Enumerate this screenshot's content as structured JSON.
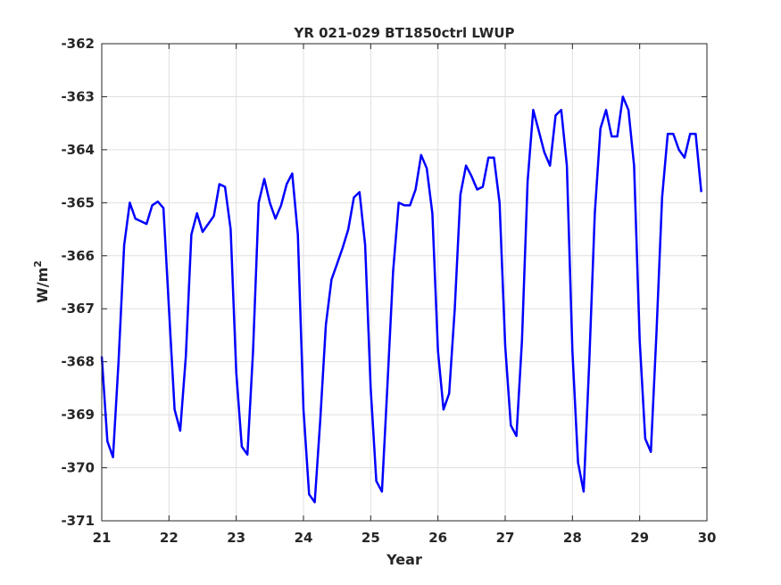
{
  "chart_data": {
    "type": "line",
    "title": "YR 021-029 BT1850ctrl LWUP",
    "xlabel": "Year",
    "ylabel_base": "W/m",
    "ylabel_superscript": "2",
    "xlim": [
      21,
      30
    ],
    "ylim": [
      -371,
      -362
    ],
    "xticks": [
      21,
      22,
      23,
      24,
      25,
      26,
      27,
      28,
      29,
      30
    ],
    "yticks": [
      -362,
      -363,
      -364,
      -365,
      -366,
      -367,
      -368,
      -369,
      -370,
      -371
    ],
    "grid": true,
    "series": [
      {
        "color": "#0000ff",
        "x": [
          21.0,
          21.083,
          21.167,
          21.25,
          21.333,
          21.417,
          21.5,
          21.583,
          21.667,
          21.75,
          21.833,
          21.917,
          22.0,
          22.083,
          22.167,
          22.25,
          22.333,
          22.417,
          22.5,
          22.583,
          22.667,
          22.75,
          22.833,
          22.917,
          23.0,
          23.083,
          23.167,
          23.25,
          23.333,
          23.417,
          23.5,
          23.583,
          23.667,
          23.75,
          23.833,
          23.917,
          24.0,
          24.083,
          24.167,
          24.25,
          24.333,
          24.417,
          24.5,
          24.583,
          24.667,
          24.75,
          24.833,
          24.917,
          25.0,
          25.083,
          25.167,
          25.25,
          25.333,
          25.417,
          25.5,
          25.583,
          25.667,
          25.75,
          25.833,
          25.917,
          26.0,
          26.083,
          26.167,
          26.25,
          26.333,
          26.417,
          26.5,
          26.583,
          26.667,
          26.75,
          26.833,
          26.917,
          27.0,
          27.083,
          27.167,
          27.25,
          27.333,
          27.417,
          27.5,
          27.583,
          27.667,
          27.75,
          27.833,
          27.917,
          28.0,
          28.083,
          28.167,
          28.25,
          28.333,
          28.417,
          28.5,
          28.583,
          28.667,
          28.75,
          28.833,
          28.917,
          29.0,
          29.083,
          29.167,
          29.25,
          29.333,
          29.417,
          29.5,
          29.583,
          29.667,
          29.75,
          29.833,
          29.917
        ],
        "y": [
          -367.9,
          -369.5,
          -369.8,
          -368.0,
          -365.8,
          -365.0,
          -365.3,
          -365.35,
          -365.4,
          -365.05,
          -364.98,
          -365.1,
          -367.0,
          -368.9,
          -369.3,
          -367.9,
          -365.6,
          -365.2,
          -365.55,
          -365.4,
          -365.25,
          -364.65,
          -364.7,
          -365.5,
          -368.2,
          -369.6,
          -369.75,
          -367.8,
          -365.0,
          -364.55,
          -365.0,
          -365.3,
          -365.05,
          -364.65,
          -364.45,
          -365.6,
          -368.9,
          -370.5,
          -370.65,
          -369.1,
          -367.3,
          -366.45,
          -366.15,
          -365.85,
          -365.5,
          -364.9,
          -364.8,
          -365.8,
          -368.5,
          -370.25,
          -370.45,
          -368.4,
          -366.3,
          -365.0,
          -365.05,
          -365.05,
          -364.75,
          -364.1,
          -364.35,
          -365.2,
          -367.8,
          -368.9,
          -368.6,
          -367.0,
          -364.85,
          -364.3,
          -364.5,
          -364.75,
          -364.7,
          -364.15,
          -364.15,
          -365.0,
          -367.7,
          -369.2,
          -369.4,
          -367.6,
          -364.6,
          -363.25,
          -363.65,
          -364.05,
          -364.3,
          -363.35,
          -363.25,
          -364.3,
          -367.8,
          -369.9,
          -370.45,
          -368.0,
          -365.2,
          -363.6,
          -363.25,
          -363.75,
          -363.75,
          -363.0,
          -363.25,
          -364.3,
          -367.6,
          -369.45,
          -369.7,
          -367.45,
          -364.9,
          -363.7,
          -363.7,
          -364.0,
          -364.15,
          -363.7,
          -363.7,
          -364.8
        ]
      }
    ]
  }
}
